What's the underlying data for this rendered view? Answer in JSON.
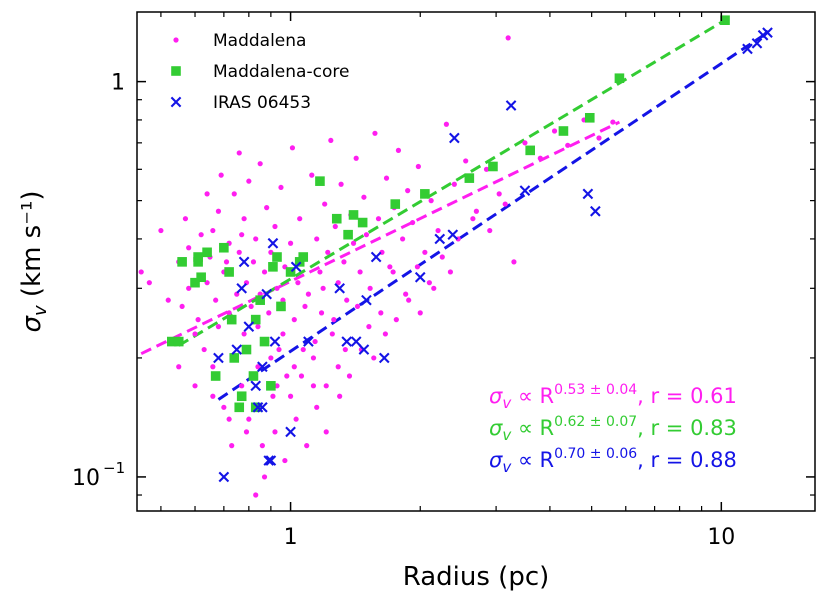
{
  "chart_data": {
    "type": "scatter",
    "xlabel": "Radius (pc)",
    "ylabel": "σ_v (km s⁻¹)",
    "xscale": "log",
    "yscale": "log",
    "xlim": [
      0.44,
      16.5
    ],
    "ylim": [
      0.082,
      1.5
    ],
    "x_ticks": [
      {
        "value": 1,
        "label": "1"
      },
      {
        "value": 10,
        "label": "10"
      }
    ],
    "y_ticks": [
      {
        "value": 0.1,
        "label": "10",
        "exp": "−1"
      },
      {
        "value": 1,
        "label": "1"
      }
    ],
    "legend_position": "top-left",
    "series": [
      {
        "name": "Maddalena",
        "marker": "circle",
        "color": "#ff1ef0",
        "points": [
          [
            0.45,
            0.33
          ],
          [
            0.47,
            0.31
          ],
          [
            0.5,
            0.42
          ],
          [
            0.52,
            0.28
          ],
          [
            0.53,
            0.22
          ],
          [
            0.55,
            0.35
          ],
          [
            0.56,
            0.27
          ],
          [
            0.58,
            0.38
          ],
          [
            0.58,
            0.3
          ],
          [
            0.6,
            0.23
          ],
          [
            0.61,
            0.25
          ],
          [
            0.62,
            0.41
          ],
          [
            0.63,
            0.21
          ],
          [
            0.64,
            0.31
          ],
          [
            0.65,
            0.36
          ],
          [
            0.66,
            0.19
          ],
          [
            0.67,
            0.28
          ],
          [
            0.68,
            0.47
          ],
          [
            0.68,
            0.24
          ],
          [
            0.7,
            0.33
          ],
          [
            0.7,
            0.15
          ],
          [
            0.72,
            0.39
          ],
          [
            0.72,
            0.26
          ],
          [
            0.74,
            0.52
          ],
          [
            0.74,
            0.2
          ],
          [
            0.75,
            0.29
          ],
          [
            0.76,
            0.37
          ],
          [
            0.77,
            0.17
          ],
          [
            0.78,
            0.45
          ],
          [
            0.78,
            0.23
          ],
          [
            0.79,
            0.31
          ],
          [
            0.8,
            0.56
          ],
          [
            0.8,
            0.14
          ],
          [
            0.81,
            0.27
          ],
          [
            0.82,
            0.35
          ],
          [
            0.83,
            0.4
          ],
          [
            0.84,
            0.19
          ],
          [
            0.85,
            0.62
          ],
          [
            0.85,
            0.29
          ],
          [
            0.86,
            0.12
          ],
          [
            0.87,
            0.33
          ],
          [
            0.88,
            0.48
          ],
          [
            0.88,
            0.22
          ],
          [
            0.89,
            0.26
          ],
          [
            0.9,
            0.37
          ],
          [
            0.91,
            0.16
          ],
          [
            0.92,
            0.43
          ],
          [
            0.93,
            0.3
          ],
          [
            0.94,
            0.21
          ],
          [
            0.95,
            0.54
          ],
          [
            0.96,
            0.28
          ],
          [
            0.97,
            0.34
          ],
          [
            0.98,
            0.18
          ],
          [
            1.0,
            0.39
          ],
          [
            1.01,
            0.68
          ],
          [
            1.02,
            0.25
          ],
          [
            1.04,
            0.31
          ],
          [
            1.05,
            0.45
          ],
          [
            1.07,
            0.21
          ],
          [
            1.08,
            0.36
          ],
          [
            1.1,
            0.29
          ],
          [
            1.12,
            0.58
          ],
          [
            1.13,
            0.17
          ],
          [
            1.15,
            0.4
          ],
          [
            1.17,
            0.33
          ],
          [
            1.18,
            0.26
          ],
          [
            1.2,
            0.49
          ],
          [
            1.22,
            0.37
          ],
          [
            1.24,
            0.71
          ],
          [
            1.25,
            0.23
          ],
          [
            1.27,
            0.43
          ],
          [
            1.29,
            0.31
          ],
          [
            1.31,
            0.55
          ],
          [
            1.33,
            0.35
          ],
          [
            1.35,
            0.28
          ],
          [
            1.38,
            0.46
          ],
          [
            1.4,
            0.39
          ],
          [
            1.42,
            0.64
          ],
          [
            1.45,
            0.33
          ],
          [
            1.48,
            0.51
          ],
          [
            1.5,
            0.41
          ],
          [
            1.53,
            0.3
          ],
          [
            1.57,
            0.74
          ],
          [
            1.6,
            0.45
          ],
          [
            1.63,
            0.37
          ],
          [
            1.67,
            0.57
          ],
          [
            1.7,
            0.34
          ],
          [
            1.74,
            0.48
          ],
          [
            1.78,
            0.67
          ],
          [
            1.82,
            0.4
          ],
          [
            1.87,
            0.53
          ],
          [
            1.92,
            0.44
          ],
          [
            1.98,
            0.61
          ],
          [
            2.05,
            0.37
          ],
          [
            2.12,
            0.5
          ],
          [
            2.2,
            0.42
          ],
          [
            2.3,
            0.78
          ],
          [
            2.4,
            0.55
          ],
          [
            2.55,
            0.63
          ],
          [
            2.7,
            0.47
          ],
          [
            2.85,
            0.6
          ],
          [
            3.05,
            0.52
          ],
          [
            3.2,
            1.29
          ],
          [
            3.3,
            0.35
          ],
          [
            3.5,
            0.7
          ],
          [
            3.8,
            0.64
          ],
          [
            4.1,
            0.75
          ],
          [
            4.4,
            0.69
          ],
          [
            4.8,
            0.8
          ],
          [
            5.2,
            0.72
          ],
          [
            5.6,
            0.79
          ],
          [
            0.57,
            0.45
          ],
          [
            0.64,
            0.52
          ],
          [
            0.69,
            0.58
          ],
          [
            0.73,
            0.12
          ],
          [
            0.76,
            0.66
          ],
          [
            0.83,
            0.09
          ],
          [
            0.87,
            0.1
          ],
          [
            0.92,
            0.13
          ],
          [
            0.97,
            0.11
          ],
          [
            1.03,
            0.14
          ],
          [
            1.09,
            0.12
          ],
          [
            1.15,
            0.15
          ],
          [
            1.21,
            0.13
          ],
          [
            1.3,
            0.16
          ],
          [
            0.66,
            0.42
          ],
          [
            0.71,
            0.35
          ],
          [
            0.77,
            0.41
          ],
          [
            0.84,
            0.24
          ],
          [
            0.9,
            0.2
          ],
          [
            0.96,
            0.23
          ],
          [
            1.02,
            0.19
          ],
          [
            1.08,
            0.27
          ],
          [
            1.14,
            0.22
          ],
          [
            1.19,
            0.3
          ],
          [
            1.26,
            0.25
          ],
          [
            1.34,
            0.21
          ],
          [
            1.43,
            0.27
          ],
          [
            1.52,
            0.24
          ],
          [
            1.62,
            0.26
          ],
          [
            1.73,
            0.33
          ],
          [
            1.85,
            0.29
          ],
          [
            1.97,
            0.34
          ],
          [
            2.1,
            0.31
          ],
          [
            2.25,
            0.36
          ],
          [
            2.45,
            0.4
          ],
          [
            2.65,
            0.45
          ],
          [
            2.9,
            0.42
          ],
          [
            3.15,
            0.49
          ],
          [
            0.55,
            0.19
          ],
          [
            0.6,
            0.17
          ],
          [
            0.66,
            0.16
          ],
          [
            0.72,
            0.14
          ],
          [
            0.79,
            0.13
          ],
          [
            0.85,
            0.15
          ],
          [
            0.93,
            0.17
          ],
          [
            1.0,
            0.16
          ],
          [
            1.06,
            0.18
          ],
          [
            1.13,
            0.2
          ],
          [
            1.21,
            0.17
          ],
          [
            1.29,
            0.19
          ],
          [
            1.37,
            0.18
          ],
          [
            1.46,
            0.21
          ],
          [
            1.56,
            0.2
          ],
          [
            1.66,
            0.23
          ],
          [
            1.76,
            0.25
          ],
          [
            1.88,
            0.28
          ],
          [
            2.0,
            0.26
          ],
          [
            2.15,
            0.3
          ],
          [
            2.35,
            0.33
          ]
        ]
      },
      {
        "name": "Maddalena-core",
        "marker": "square",
        "color": "#33cc33",
        "points": [
          [
            0.53,
            0.22
          ],
          [
            0.55,
            0.22
          ],
          [
            0.56,
            0.35
          ],
          [
            0.6,
            0.31
          ],
          [
            0.61,
            0.35
          ],
          [
            0.61,
            0.36
          ],
          [
            0.62,
            0.32
          ],
          [
            0.64,
            0.37
          ],
          [
            0.67,
            0.18
          ],
          [
            0.7,
            0.38
          ],
          [
            0.72,
            0.33
          ],
          [
            0.73,
            0.25
          ],
          [
            0.74,
            0.2
          ],
          [
            0.76,
            0.15
          ],
          [
            0.77,
            0.16
          ],
          [
            0.79,
            0.21
          ],
          [
            0.82,
            0.18
          ],
          [
            0.83,
            0.25
          ],
          [
            0.83,
            0.15
          ],
          [
            0.85,
            0.28
          ],
          [
            0.87,
            0.22
          ],
          [
            0.9,
            0.17
          ],
          [
            0.91,
            0.34
          ],
          [
            0.93,
            0.36
          ],
          [
            0.95,
            0.27
          ],
          [
            1.0,
            0.33
          ],
          [
            1.05,
            0.35
          ],
          [
            1.07,
            0.36
          ],
          [
            1.17,
            0.56
          ],
          [
            1.28,
            0.45
          ],
          [
            1.36,
            0.41
          ],
          [
            1.4,
            0.46
          ],
          [
            1.47,
            0.44
          ],
          [
            1.75,
            0.49
          ],
          [
            2.05,
            0.52
          ],
          [
            2.6,
            0.57
          ],
          [
            2.95,
            0.61
          ],
          [
            3.6,
            0.67
          ],
          [
            4.3,
            0.75
          ],
          [
            4.95,
            0.81
          ],
          [
            5.8,
            1.02
          ],
          [
            10.2,
            1.43
          ]
        ]
      },
      {
        "name": "IRAS 06453",
        "marker": "x",
        "color": "#1414e6",
        "points": [
          [
            0.68,
            0.2
          ],
          [
            0.7,
            0.1
          ],
          [
            0.75,
            0.21
          ],
          [
            0.77,
            0.3
          ],
          [
            0.78,
            0.35
          ],
          [
            0.8,
            0.24
          ],
          [
            0.83,
            0.17
          ],
          [
            0.84,
            0.15
          ],
          [
            0.86,
            0.15
          ],
          [
            0.86,
            0.19
          ],
          [
            0.88,
            0.29
          ],
          [
            0.89,
            0.11
          ],
          [
            0.9,
            0.11
          ],
          [
            0.91,
            0.39
          ],
          [
            0.92,
            0.22
          ],
          [
            1.0,
            0.13
          ],
          [
            1.03,
            0.34
          ],
          [
            1.1,
            0.22
          ],
          [
            1.3,
            0.3
          ],
          [
            1.35,
            0.22
          ],
          [
            1.42,
            0.22
          ],
          [
            1.48,
            0.21
          ],
          [
            1.5,
            0.28
          ],
          [
            1.58,
            0.36
          ],
          [
            1.65,
            0.2
          ],
          [
            2.0,
            0.32
          ],
          [
            2.22,
            0.4
          ],
          [
            2.38,
            0.41
          ],
          [
            2.4,
            0.72
          ],
          [
            3.25,
            0.87
          ],
          [
            3.5,
            0.53
          ],
          [
            4.9,
            0.52
          ],
          [
            5.1,
            0.47
          ],
          [
            11.5,
            1.21
          ],
          [
            12.1,
            1.25
          ],
          [
            12.5,
            1.31
          ],
          [
            12.8,
            1.33
          ]
        ]
      }
    ],
    "fits": [
      {
        "series": "Maddalena",
        "color": "#ff1ef0",
        "label_prefix": "σ",
        "label_sub": "v",
        "label_mid": " ∝ R",
        "exponent": "0.53 ± 0.04",
        "r_text": ",  r = 0.61",
        "x_range": [
          0.45,
          5.8
        ],
        "y_range": [
          0.205,
          0.79
        ]
      },
      {
        "series": "Maddalena-core",
        "color": "#33cc33",
        "label_prefix": "σ",
        "label_sub": "v",
        "label_mid": " ∝ R",
        "exponent": "0.62 ± 0.07",
        "r_text": ",  r = 0.83",
        "x_range": [
          0.55,
          10.2
        ],
        "y_range": [
          0.215,
          1.43
        ]
      },
      {
        "series": "IRAS 06453",
        "color": "#1414e6",
        "label_prefix": "σ",
        "label_sub": "v",
        "label_mid": " ∝ R",
        "exponent": "0.70 ± 0.06",
        "r_text": ",  r = 0.88",
        "x_range": [
          0.68,
          12.8
        ],
        "y_range": [
          0.157,
          1.33
        ]
      }
    ]
  }
}
